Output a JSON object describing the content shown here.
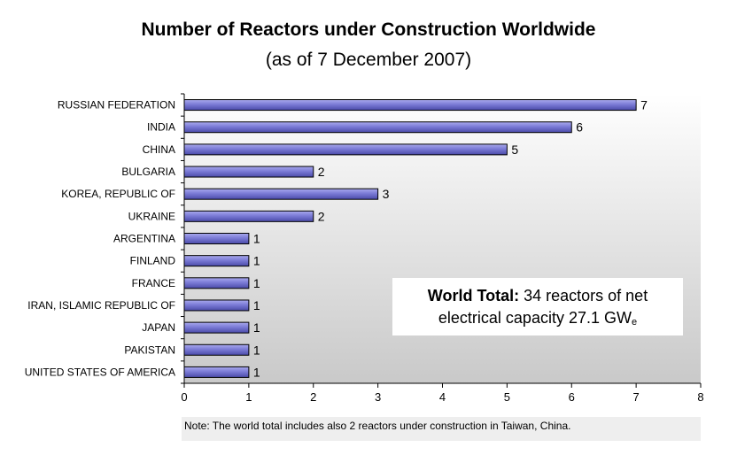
{
  "chart_data": {
    "type": "bar",
    "orientation": "horizontal",
    "title": "Number of Reactors under Construction Worldwide",
    "subtitle": "(as of 7 December 2007)",
    "categories": [
      "RUSSIAN FEDERATION",
      "INDIA",
      "CHINA",
      "BULGARIA",
      "KOREA, REPUBLIC OF",
      "UKRAINE",
      "ARGENTINA",
      "FINLAND",
      "FRANCE",
      "IRAN, ISLAMIC REPUBLIC OF",
      "JAPAN",
      "PAKISTAN",
      "UNITED STATES OF AMERICA"
    ],
    "values": [
      7,
      6,
      5,
      2,
      3,
      2,
      1,
      1,
      1,
      1,
      1,
      1,
      1
    ],
    "xlim": [
      0,
      8
    ],
    "xticks": [
      0,
      1,
      2,
      3,
      4,
      5,
      6,
      7,
      8
    ],
    "grid": false,
    "bar_color": "#7b7bd6"
  },
  "annotation": {
    "bold": "World Total:",
    "line1": " 34 reactors of net",
    "line2": "electrical capacity 27.1 GW",
    "subscript": "e"
  },
  "note": "Note: The world total includes also 2 reactors under construction in Taiwan, China."
}
